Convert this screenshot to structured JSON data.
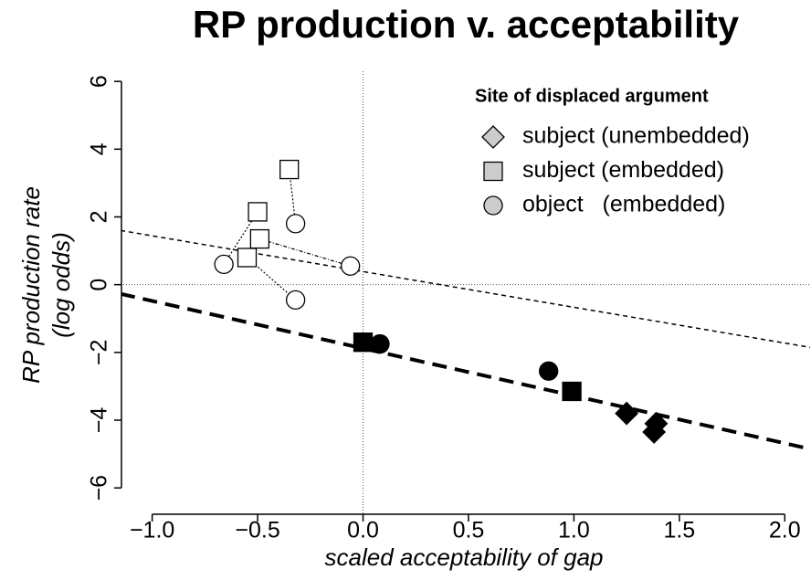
{
  "chart_data": {
    "type": "scatter",
    "title": "RP production v. acceptability",
    "x_label": "scaled acceptability of gap",
    "y_label": [
      "RP production rate",
      "(log odds)"
    ],
    "xlim": [
      -1.15,
      2.12
    ],
    "ylim": [
      -6.75,
      6.3
    ],
    "xticks": [
      {
        "value": -1.0,
        "label": "−1.0"
      },
      {
        "value": -0.5,
        "label": "−0.5"
      },
      {
        "value": 0.0,
        "label": "0.0"
      },
      0.5,
      {
        "value": 1.0,
        "label": "1.0"
      },
      1.5,
      {
        "value": 2.0,
        "label": "2.0"
      }
    ],
    "yticks": [
      {
        "value": -6,
        "label": "−6"
      },
      {
        "value": -4,
        "label": "−4"
      },
      {
        "value": -2,
        "label": "−2"
      },
      0,
      2,
      4,
      6
    ],
    "hline": 0,
    "vline": 0,
    "legend": {
      "title": "Site of displaced argument",
      "position": "topright",
      "color": "#cccccc"
    },
    "series": [
      {
        "name": "subject (unembedded)",
        "marker": "diamond",
        "x": [
          1.25,
          1.38,
          1.39
        ],
        "y": [
          -3.8,
          -4.35,
          -4.1
        ],
        "fills": [
          "#000000",
          "#000000",
          "#000000"
        ]
      },
      {
        "name": "subject (embedded)",
        "marker": "square",
        "x": [
          -0.35,
          -0.5,
          -0.49,
          -0.55,
          0.0,
          0.99
        ],
        "y": [
          3.4,
          2.15,
          1.35,
          0.8,
          -1.7,
          -3.15
        ],
        "fills": [
          "#ffffff",
          "#ffffff",
          "#ffffff",
          "#ffffff",
          "#000000",
          "#000000"
        ]
      },
      {
        "name": "object   (embedded)",
        "marker": "circle",
        "x": [
          -0.32,
          -0.66,
          -0.06,
          -0.32,
          0.08,
          0.88
        ],
        "y": [
          1.8,
          0.6,
          0.55,
          -0.45,
          -1.75,
          -2.55
        ],
        "fills": [
          "#ffffff",
          "#ffffff",
          "#ffffff",
          "#ffffff",
          "#000000",
          "#000000"
        ]
      }
    ],
    "connectors": [
      {
        "x": [
          -0.35,
          -0.32
        ],
        "y": [
          3.4,
          1.8
        ]
      },
      {
        "x": [
          -0.5,
          -0.66
        ],
        "y": [
          2.15,
          0.6
        ]
      },
      {
        "x": [
          -0.49,
          -0.06
        ],
        "y": [
          1.35,
          0.55
        ]
      },
      {
        "x": [
          -0.55,
          -0.32
        ],
        "y": [
          0.8,
          -0.45
        ]
      }
    ],
    "fit_lines": [
      {
        "x": [
          -1.15,
          2.12
        ],
        "y": [
          1.6,
          -1.85
        ],
        "width": 1.5,
        "dash": "5,4"
      },
      {
        "x": [
          -1.15,
          2.12
        ],
        "y": [
          -0.27,
          -4.85
        ],
        "width": 4,
        "dash": "16,9"
      }
    ]
  }
}
